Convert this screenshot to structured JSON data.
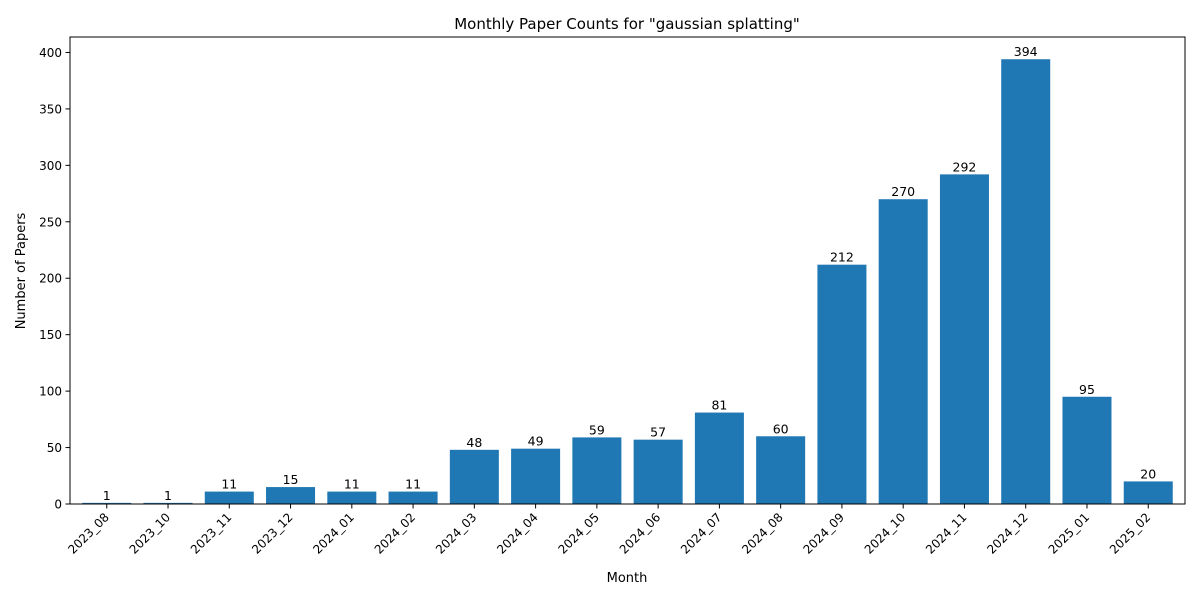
{
  "chart_data": {
    "type": "bar",
    "title": "Monthly Paper Counts for \"gaussian splatting\"",
    "xlabel": "Month",
    "ylabel": "Number of Papers",
    "categories": [
      "2023_08",
      "2023_10",
      "2023_11",
      "2023_12",
      "2024_01",
      "2024_02",
      "2024_03",
      "2024_04",
      "2024_05",
      "2024_06",
      "2024_07",
      "2024_08",
      "2024_09",
      "2024_10",
      "2024_11",
      "2024_12",
      "2025_01",
      "2025_02"
    ],
    "values": [
      1,
      1,
      11,
      15,
      11,
      11,
      48,
      49,
      59,
      57,
      81,
      60,
      212,
      270,
      292,
      394,
      95,
      20
    ],
    "value_labels": [
      "1",
      "1",
      "11",
      "15",
      "11",
      "11",
      "48",
      "49",
      "59",
      "57",
      "81",
      "60",
      "212",
      "270",
      "292",
      "394",
      "95",
      "20"
    ],
    "yticks": [
      0,
      50,
      100,
      150,
      200,
      250,
      300,
      350,
      400
    ],
    "ytick_labels": [
      "0",
      "50",
      "100",
      "150",
      "200",
      "250",
      "300",
      "350",
      "400"
    ],
    "ylim": [
      0,
      413.7
    ],
    "grid": false,
    "legend": "none",
    "xtick_rotation_deg": 45,
    "bar_color": "#1f77b4",
    "axis_color": "#000000",
    "background_color": "#ffffff"
  }
}
